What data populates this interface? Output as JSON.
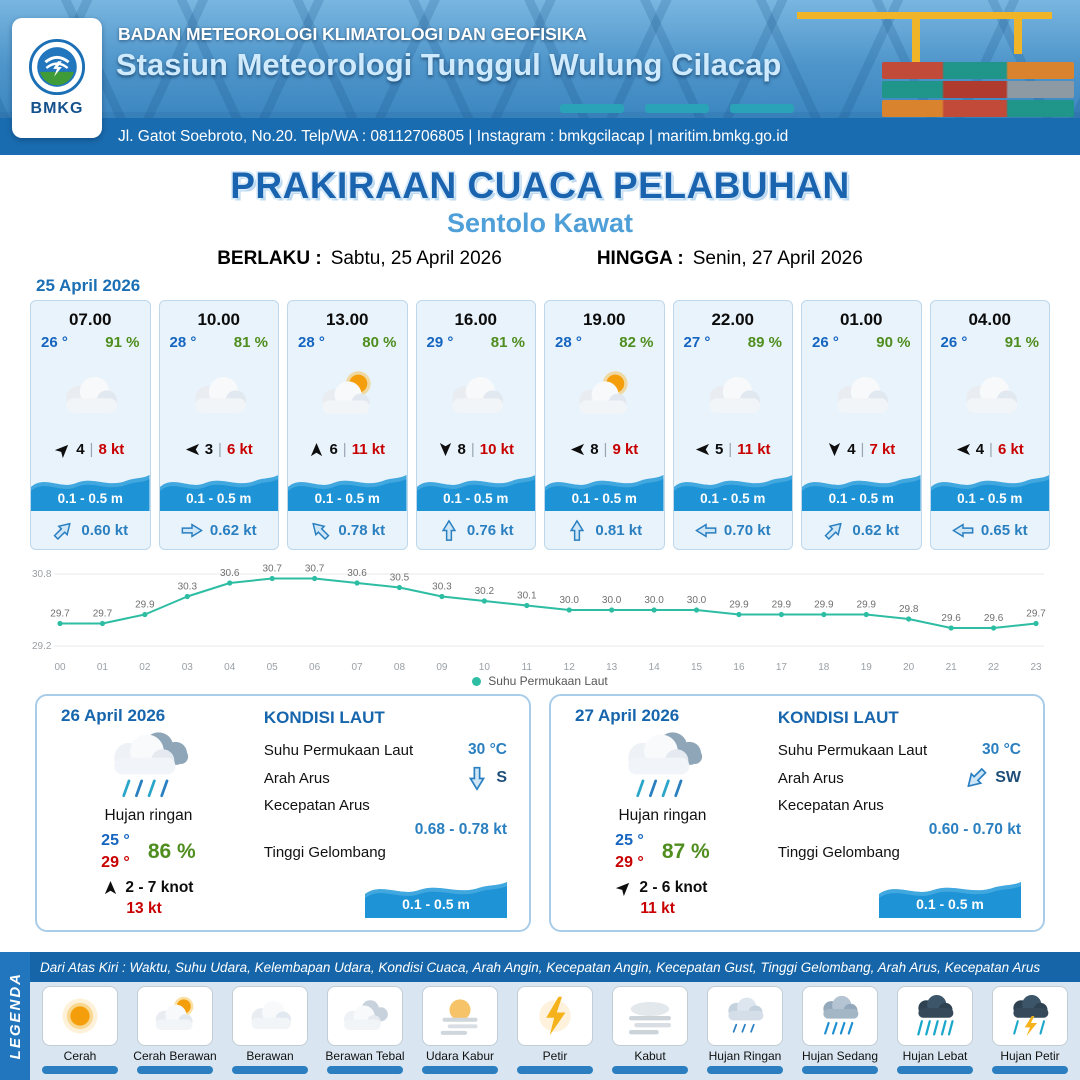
{
  "header": {
    "agency": "BADAN METEOROLOGI KLIMATOLOGI DAN GEOFISIKA",
    "station": "Stasiun Meteorologi Tunggul Wulung Cilacap",
    "contact": "Jl. Gatot Soebroto, No.20. Telp/WA : 08112706805 | Instagram : bmkgcilacap | maritim.bmkg.go.id",
    "logo_text": "BMKG"
  },
  "title": {
    "main": "PRAKIRAAN CUACA PELABUHAN",
    "subtitle": "Sentolo Kawat",
    "berlaku_label": "BERLAKU :",
    "berlaku_value": "Sabtu, 25 April 2026",
    "hingga_label": "HINGGA :",
    "hingga_value": "Senin, 27 April 2026"
  },
  "forecast_date": "25 April 2026",
  "ui": {
    "sep": "|"
  },
  "cards": [
    {
      "time": "07.00",
      "temp": "26 °",
      "humidity": "91 %",
      "icon": "berawan",
      "wind_dir": "NE",
      "wind_val": "4",
      "wind_speed": "8 kt",
      "wave": "0.1 - 0.5 m",
      "current_dir": "NE",
      "current_speed": "0.60 kt"
    },
    {
      "time": "10.00",
      "temp": "28 °",
      "humidity": "81 %",
      "icon": "berawan",
      "wind_dir": "W",
      "wind_val": "3",
      "wind_speed": "6 kt",
      "wave": "0.1 - 0.5 m",
      "current_dir": "E",
      "current_speed": "0.62 kt"
    },
    {
      "time": "13.00",
      "temp": "28 °",
      "humidity": "80 %",
      "icon": "cerah-berawan",
      "wind_dir": "N",
      "wind_val": "6",
      "wind_speed": "11 kt",
      "wave": "0.1 - 0.5 m",
      "current_dir": "NW",
      "current_speed": "0.78 kt"
    },
    {
      "time": "16.00",
      "temp": "29 °",
      "humidity": "81 %",
      "icon": "berawan",
      "wind_dir": "S",
      "wind_val": "8",
      "wind_speed": "10 kt",
      "wave": "0.1 - 0.5 m",
      "current_dir": "N",
      "current_speed": "0.76 kt"
    },
    {
      "time": "19.00",
      "temp": "28 °",
      "humidity": "82 %",
      "icon": "cerah-berawan",
      "wind_dir": "W",
      "wind_val": "8",
      "wind_speed": "9 kt",
      "wave": "0.1 - 0.5 m",
      "current_dir": "N",
      "current_speed": "0.81 kt"
    },
    {
      "time": "22.00",
      "temp": "27 °",
      "humidity": "89 %",
      "icon": "berawan",
      "wind_dir": "W",
      "wind_val": "5",
      "wind_speed": "11 kt",
      "wave": "0.1 - 0.5 m",
      "current_dir": "W",
      "current_speed": "0.70 kt"
    },
    {
      "time": "01.00",
      "temp": "26 °",
      "humidity": "90 %",
      "icon": "berawan",
      "wind_dir": "S",
      "wind_val": "4",
      "wind_speed": "7 kt",
      "wave": "0.1 - 0.5 m",
      "current_dir": "NE",
      "current_speed": "0.62 kt"
    },
    {
      "time": "04.00",
      "temp": "26 °",
      "humidity": "91 %",
      "icon": "berawan",
      "wind_dir": "W",
      "wind_val": "4",
      "wind_speed": "6 kt",
      "wave": "0.1 - 0.5 m",
      "current_dir": "W",
      "current_speed": "0.65 kt"
    }
  ],
  "chart_data": {
    "type": "line",
    "title": "Suhu Permukaan Laut",
    "x": [
      "00",
      "01",
      "02",
      "03",
      "04",
      "05",
      "06",
      "07",
      "08",
      "09",
      "10",
      "11",
      "12",
      "13",
      "14",
      "15",
      "16",
      "17",
      "18",
      "19",
      "20",
      "21",
      "22",
      "23"
    ],
    "values": [
      29.7,
      29.7,
      29.9,
      30.3,
      30.6,
      30.7,
      30.7,
      30.6,
      30.5,
      30.3,
      30.2,
      30.1,
      30.0,
      30.0,
      30.0,
      30.0,
      29.9,
      29.9,
      29.9,
      29.9,
      29.8,
      29.6,
      29.6,
      29.7
    ],
    "ylim": [
      29.2,
      30.8
    ],
    "xlabel": "",
    "ylabel": "",
    "line_color": "#2dbda3",
    "legend": "Suhu Permukaan Laut",
    "legend_position": "bottom",
    "grid": false
  },
  "daily": [
    {
      "date": "26 April 2026",
      "condition": "Hujan ringan",
      "temp_min": "25 °",
      "temp_max": "29 °",
      "humidity": "86 %",
      "wind_dir": "N",
      "wind_range": "2 - 7 knot",
      "gust": "13 kt",
      "sea_title": "KONDISI LAUT",
      "sst_label": "Suhu Permukaan Laut",
      "sst": "30 °C",
      "current_dir_label": "Arah Arus",
      "current_dir": "S",
      "current_speed_label": "Kecepatan Arus",
      "current_speed": "0.68 - 0.78 kt",
      "wave_label": "Tinggi Gelombang",
      "wave": "0.1 - 0.5 m"
    },
    {
      "date": "27 April 2026",
      "condition": "Hujan ringan",
      "temp_min": "25 °",
      "temp_max": "29 °",
      "humidity": "87 %",
      "wind_dir": "NE",
      "wind_range": "2 - 6 knot",
      "gust": "11 kt",
      "sea_title": "KONDISI LAUT",
      "sst_label": "Suhu Permukaan Laut",
      "sst": "30 °C",
      "current_dir_label": "Arah Arus",
      "current_dir": "SW",
      "current_speed_label": "Kecepatan Arus",
      "current_speed": "0.60 - 0.70 kt",
      "wave_label": "Tinggi Gelombang",
      "wave": "0.1 - 0.5 m"
    }
  ],
  "legend": {
    "title": "LEGENDA",
    "note": "Dari Atas Kiri : Waktu, Suhu Udara, Kelembapan Udara, Kondisi Cuaca, Arah Angin, Kecepatan Angin, Kecepatan Gust, Tinggi Gelombang, Arah Arus, Kecepatan Arus",
    "items": [
      {
        "label": "Cerah",
        "icon": "cerah"
      },
      {
        "label": "Cerah Berawan",
        "icon": "cerah-berawan"
      },
      {
        "label": "Berawan",
        "icon": "berawan"
      },
      {
        "label": "Berawan Tebal",
        "icon": "berawan-tebal"
      },
      {
        "label": "Udara Kabur",
        "icon": "udara-kabur"
      },
      {
        "label": "Petir",
        "icon": "petir"
      },
      {
        "label": "Kabut",
        "icon": "kabut"
      },
      {
        "label": "Hujan Ringan",
        "icon": "hujan-ringan"
      },
      {
        "label": "Hujan Sedang",
        "icon": "hujan-sedang"
      },
      {
        "label": "Hujan Lebat",
        "icon": "hujan-lebat"
      },
      {
        "label": "Hujan Petir",
        "icon": "hujan-petir"
      }
    ]
  }
}
